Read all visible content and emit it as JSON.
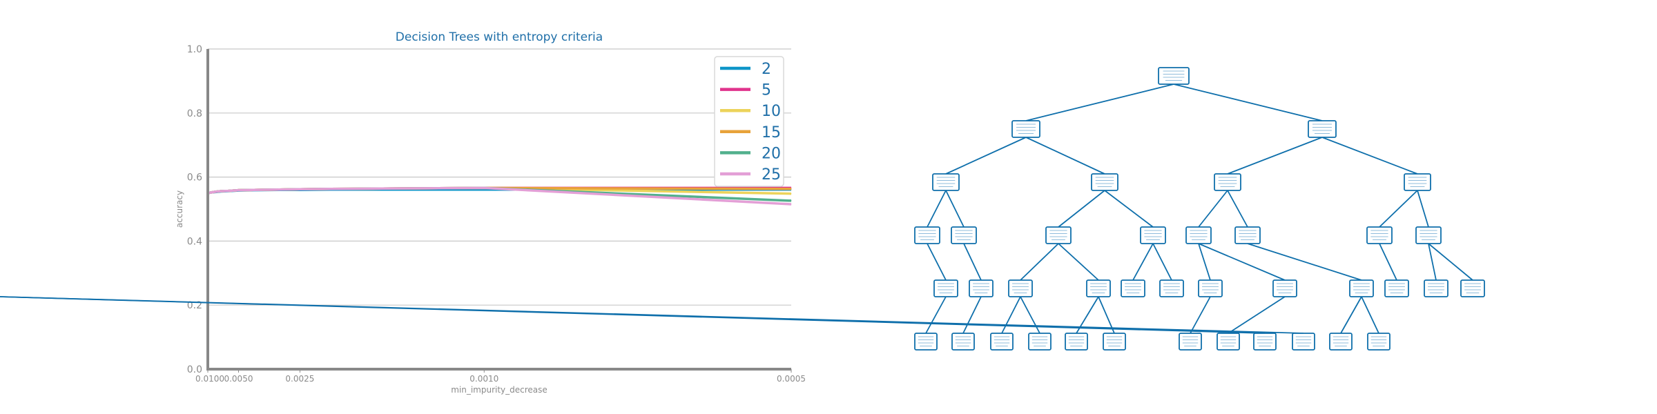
{
  "chart_data": [
    {
      "type": "line",
      "title": "Decision Trees with entropy criteria",
      "xlabel": "min_impurity_decrease",
      "ylabel": "accuracy",
      "x_scale": "reciprocal",
      "x": [
        0.01,
        0.009,
        0.008,
        0.007,
        0.006,
        0.005,
        0.004,
        0.003,
        0.0025,
        0.002,
        0.0015,
        0.001,
        0.0005
      ],
      "xticks": [
        "0.0100",
        "0.0050",
        "0.0025",
        "0.0010",
        "0.0005"
      ],
      "ylim": [
        0.0,
        1.0
      ],
      "yticks": [
        "0.0",
        "0.2",
        "0.4",
        "0.6",
        "0.8",
        "1.0"
      ],
      "grid": "horizontal",
      "legend_position": "top-right",
      "series": [
        {
          "name": "2",
          "color": "#0e95c8",
          "values": [
            0.55,
            0.552,
            0.553,
            0.555,
            0.556,
            0.558,
            0.559,
            0.56,
            0.56,
            0.561,
            0.561,
            0.561,
            0.561
          ]
        },
        {
          "name": "5",
          "color": "#e0338c",
          "values": [
            0.55,
            0.552,
            0.554,
            0.556,
            0.557,
            0.559,
            0.56,
            0.561,
            0.562,
            0.563,
            0.564,
            0.566,
            0.566
          ]
        },
        {
          "name": "10",
          "color": "#ecd35a",
          "values": [
            0.55,
            0.552,
            0.554,
            0.556,
            0.557,
            0.559,
            0.56,
            0.561,
            0.562,
            0.563,
            0.564,
            0.566,
            0.548
          ]
        },
        {
          "name": "15",
          "color": "#e8a23a",
          "values": [
            0.55,
            0.552,
            0.554,
            0.556,
            0.557,
            0.559,
            0.56,
            0.561,
            0.562,
            0.563,
            0.564,
            0.566,
            0.563
          ]
        },
        {
          "name": "20",
          "color": "#52b08d",
          "values": [
            0.55,
            0.552,
            0.554,
            0.556,
            0.557,
            0.559,
            0.56,
            0.561,
            0.562,
            0.563,
            0.564,
            0.566,
            0.526
          ]
        },
        {
          "name": "25",
          "color": "#e39fd6",
          "values": [
            0.55,
            0.552,
            0.554,
            0.556,
            0.557,
            0.559,
            0.56,
            0.561,
            0.562,
            0.563,
            0.564,
            0.566,
            0.515
          ]
        }
      ]
    }
  ],
  "tree": {
    "edge_color": "#0e6fab",
    "node_border_color": "#0e6fab",
    "levels": [
      [
        0
      ],
      [
        0,
        1
      ],
      [
        0,
        1,
        2,
        3
      ],
      [
        0,
        1,
        2,
        3,
        4,
        5,
        6,
        7
      ],
      [
        1,
        2,
        4,
        5,
        6,
        7,
        8,
        9,
        11,
        12,
        14,
        15
      ],
      [
        2,
        5,
        8,
        9,
        10,
        11,
        16,
        19,
        20,
        21,
        22,
        23
      ]
    ]
  }
}
